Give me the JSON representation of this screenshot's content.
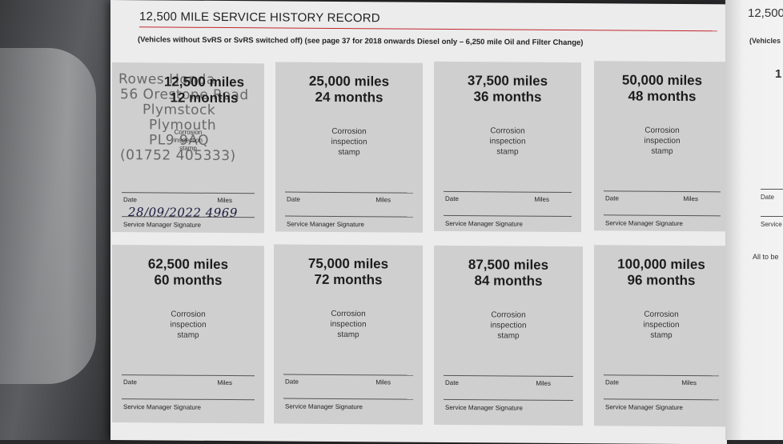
{
  "header": {
    "title": "12,500 MILE SERVICE HISTORY RECORD",
    "subtitle": "(Vehicles without SvRS or SvRS switched off) (see page 37 for 2018 onwards Diesel only – 6,250 mile Oil and Filter Change)"
  },
  "labels": {
    "stamp_line1": "Corrosion",
    "stamp_line2": "inspection",
    "stamp_line3": "stamp",
    "date": "Date",
    "miles": "Miles",
    "signature": "Service Manager Signature"
  },
  "cards": [
    {
      "miles": "12,500 miles",
      "months": "12 months"
    },
    {
      "miles": "25,000 miles",
      "months": "24 months"
    },
    {
      "miles": "37,500 miles",
      "months": "36 months"
    },
    {
      "miles": "50,000 miles",
      "months": "48 months"
    },
    {
      "miles": "62,500 miles",
      "months": "60 months"
    },
    {
      "miles": "75,000 miles",
      "months": "72 months"
    },
    {
      "miles": "87,500 miles",
      "months": "84 months"
    },
    {
      "miles": "100,000 miles",
      "months": "96 months"
    }
  ],
  "dealer_stamp": {
    "line1": "Rowes Honda",
    "line2": "56 Orestone Road",
    "line3": "Plymstock",
    "line4": "Plymouth",
    "line5": "PL9 9AQ",
    "line6": "(01752 405333)"
  },
  "handwritten_entry": "28/09/2022 4969",
  "next_page": {
    "title": "12,500",
    "subtitle": "(Vehicles",
    "number": "1",
    "date": "Date",
    "service": "Service",
    "note": "All to be"
  }
}
